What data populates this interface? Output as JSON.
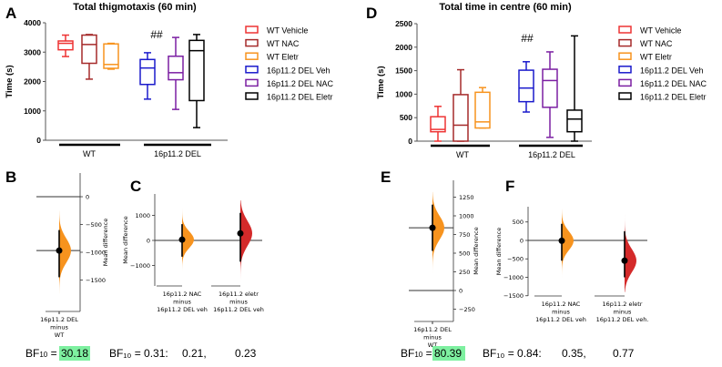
{
  "chart_data": [
    {
      "panel": "A",
      "type": "box",
      "title": "Total thigmotaxis (60 min)",
      "ylabel": "Time (s)",
      "ylim": [
        0,
        4000
      ],
      "yticks": [
        "0",
        "1000",
        "2000",
        "3000",
        "4000"
      ],
      "groups": [
        "WT",
        "16p11.2 DEL"
      ],
      "annotation": "##",
      "series": [
        {
          "name": "WT Vehicle",
          "color": "#ee3333",
          "min": 2850,
          "q1": 3080,
          "median": 3300,
          "q3": 3380,
          "max": 3580
        },
        {
          "name": "WT NAC",
          "color": "#a52a2a",
          "min": 2080,
          "q1": 2620,
          "median": 3260,
          "q3": 3580,
          "max": 3600
        },
        {
          "name": "WT Eletr",
          "color": "#f7931e",
          "min": 2420,
          "q1": 2450,
          "median": 2580,
          "q3": 3280,
          "max": 3300
        },
        {
          "name": "16p11.2 DEL Veh",
          "color": "#1a1acc",
          "min": 1400,
          "q1": 1900,
          "median": 2460,
          "q3": 2750,
          "max": 2980
        },
        {
          "name": "16p11.2 DEL NAC",
          "color": "#7b1fa2",
          "min": 1050,
          "q1": 2060,
          "median": 2300,
          "q3": 2860,
          "max": 3500
        },
        {
          "name": "16p11.2 DEL Eletr",
          "color": "#000000",
          "min": 430,
          "q1": 1350,
          "median": 3050,
          "q3": 3400,
          "max": 3600
        }
      ]
    },
    {
      "panel": "D",
      "type": "box",
      "title": "Total time in centre (60 min)",
      "ylabel": "Time (s)",
      "ylim": [
        0,
        2500
      ],
      "yticks": [
        "0",
        "500",
        "1000",
        "1500",
        "2000",
        "2500"
      ],
      "groups": [
        "WT",
        "16p11.2 DEL"
      ],
      "annotation": "##",
      "series": [
        {
          "name": "WT Vehicle",
          "color": "#ee3333",
          "min": 0,
          "q1": 200,
          "median": 250,
          "q3": 520,
          "max": 740
        },
        {
          "name": "WT NAC",
          "color": "#a52a2a",
          "min": 0,
          "q1": 0,
          "median": 340,
          "q3": 990,
          "max": 1520
        },
        {
          "name": "WT Eletr",
          "color": "#f7931e",
          "min": 280,
          "q1": 280,
          "median": 410,
          "q3": 1040,
          "max": 1140
        },
        {
          "name": "16p11.2 DEL Veh",
          "color": "#1a1acc",
          "min": 620,
          "q1": 840,
          "median": 1130,
          "q3": 1510,
          "max": 1690
        },
        {
          "name": "16p11.2 DEL NAC",
          "color": "#7b1fa2",
          "min": 80,
          "q1": 720,
          "median": 1290,
          "q3": 1530,
          "max": 1900
        },
        {
          "name": "16p11.2 DEL Eletr",
          "color": "#000000",
          "min": 0,
          "q1": 200,
          "median": 470,
          "q3": 660,
          "max": 2240
        }
      ]
    },
    {
      "panel": "B",
      "type": "estimation",
      "ylabel": "Mean difference",
      "yticks": [
        "0",
        "−500",
        "−1000",
        "−1500"
      ],
      "ytick_values": [
        0,
        -500,
        -1000,
        -1500
      ],
      "comparisons": [
        {
          "label": [
            "16p11.2 DEL",
            "minus",
            "WT"
          ],
          "mean": -970,
          "ci": [
            -1450,
            -600
          ],
          "range": [
            -1750,
            -250
          ],
          "color": "#f7931e"
        }
      ]
    },
    {
      "panel": "C",
      "type": "estimation",
      "ylabel": "Mean difference",
      "yticks": [
        "1000",
        "0",
        "−1000"
      ],
      "ytick_values": [
        1000,
        0,
        -1000
      ],
      "comparisons": [
        {
          "label": [
            "16p11.2 NAC",
            "minus",
            "16p11.2 DEL veh"
          ],
          "mean": 30,
          "ci": [
            -650,
            650
          ],
          "range": [
            -1300,
            1300
          ],
          "color": "#f7931e"
        },
        {
          "label": [
            "16p11.2 eletr",
            "minus",
            "16p11.2 DEL veh"
          ],
          "mean": 280,
          "ci": [
            -850,
            1100
          ],
          "range": [
            -1700,
            1600
          ],
          "color": "#d42a2a"
        }
      ]
    },
    {
      "panel": "E",
      "type": "estimation",
      "ylabel": "Mean difference",
      "yticks": [
        "1250",
        "1000",
        "750",
        "500",
        "250",
        "0",
        "−250"
      ],
      "ytick_values": [
        1250,
        1000,
        750,
        500,
        250,
        0,
        -250
      ],
      "comparisons": [
        {
          "label": [
            "16p11.2 DEL",
            "minus",
            "WT"
          ],
          "mean": 840,
          "ci": [
            530,
            1150
          ],
          "range": [
            230,
            1320
          ],
          "color": "#f7931e"
        }
      ]
    },
    {
      "panel": "F",
      "type": "estimation",
      "ylabel": "Mean difference",
      "yticks": [
        "500",
        "0",
        "−500",
        "−1000",
        "−1500"
      ],
      "ytick_values": [
        500,
        0,
        -500,
        -1000,
        -1500
      ],
      "comparisons": [
        {
          "label": [
            "16p11.2 NAC",
            "minus",
            "16p11.2 DEL veh"
          ],
          "mean": -10,
          "ci": [
            -550,
            450
          ],
          "range": [
            -1000,
            850
          ],
          "color": "#f7931e"
        },
        {
          "label": [
            "16p11.2 eletr",
            "minus",
            "16p11.2 DEL veh."
          ],
          "mean": -550,
          "ci": [
            -1000,
            250
          ],
          "range": [
            -1400,
            800
          ],
          "color": "#d42a2a"
        }
      ]
    }
  ],
  "bayes_factors": {
    "left": {
      "prefix": "BF",
      "sub": "10",
      "eq": " = ",
      "main": "30.18",
      "second": "BF₁₀ = 0.31:",
      "v1": "0.21,",
      "v2": "0.23"
    },
    "right": {
      "prefix": "BF",
      "sub": "10",
      "eq": " = ",
      "main": "80.39",
      "second": "BF₁₀ = 0.84:",
      "v1": "0.35,",
      "v2": "0.77"
    },
    "highlight_color": "#7ef0a0"
  }
}
